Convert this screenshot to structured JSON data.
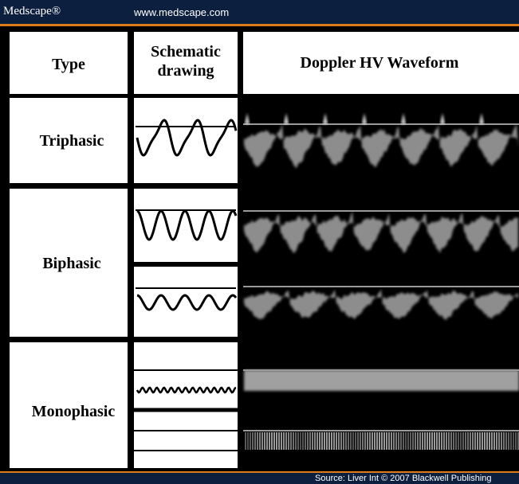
{
  "header": {
    "brand": "Medscape®",
    "url": "www.medscape.com"
  },
  "table": {
    "columns": [
      "Type",
      [
        "Schematic",
        "drawing"
      ],
      "Doppler HV Waveform"
    ],
    "rows": [
      "Triphasic",
      "Biphasic",
      "Monophasic"
    ]
  },
  "footer": {
    "source": "Source: Liver Int © 2007 Blackwell Publishing"
  }
}
